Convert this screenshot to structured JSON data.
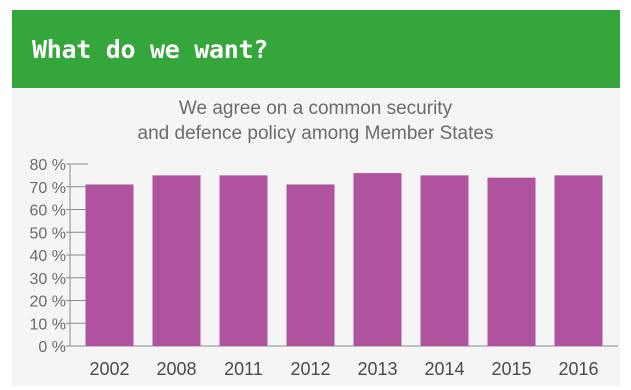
{
  "header": {
    "title": "What do we want?"
  },
  "chart_data": {
    "type": "bar",
    "title": "We agree on a common security and defence policy among Member States",
    "title_lines": [
      "We agree on a common security",
      "and defence policy among Member States"
    ],
    "categories": [
      "2002",
      "2008",
      "2011",
      "2012",
      "2013",
      "2014",
      "2015",
      "2016"
    ],
    "values": [
      71,
      75,
      75,
      71,
      76,
      75,
      74,
      75
    ],
    "ylim": [
      0,
      80
    ],
    "yticks": [
      "0 %",
      "10 %",
      "20 %",
      "30 %",
      "40 %",
      "50 %",
      "60 %",
      "70 %",
      "80 %"
    ],
    "xlabel": "",
    "ylabel": "",
    "grid": false,
    "bar_color": "#b0539f"
  },
  "colors": {
    "header_bg": "#34a63b",
    "panel_bg": "#f5f5f5",
    "bar": "#b0539f"
  }
}
